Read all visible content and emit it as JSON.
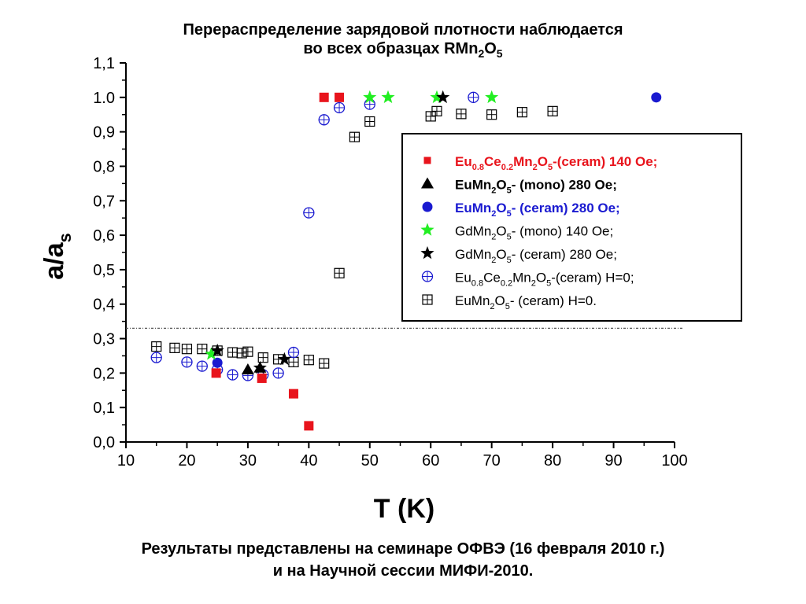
{
  "page": {
    "title_line1": "Перераспределение зарядовой плотности наблюдается",
    "title_line2_prefix": "во всех образцах RMn",
    "title_line2_sub1": "2",
    "title_line2_mid": "O",
    "title_line2_sub2": "5",
    "footer_line1": "Результаты представлены на семинаре ОФВЭ (16 февраля 2010 г.)",
    "footer_line2": "и на Научной сессии МИФИ-2010."
  },
  "chart_data": {
    "type": "scatter",
    "xlabel": "T (K)",
    "ylabel_main": "a/a",
    "ylabel_sub": "s",
    "xlim": [
      10,
      100
    ],
    "ylim": [
      0,
      1.1
    ],
    "x_ticks": [
      10,
      20,
      30,
      40,
      50,
      60,
      70,
      80,
      90,
      100
    ],
    "y_ticks": [
      {
        "v": 0.0,
        "label": "0,0"
      },
      {
        "v": 0.1,
        "label": "0,1"
      },
      {
        "v": 0.2,
        "label": "0,2"
      },
      {
        "v": 0.3,
        "label": "0,3"
      },
      {
        "v": 0.4,
        "label": "0,4"
      },
      {
        "v": 0.5,
        "label": "0,5"
      },
      {
        "v": 0.6,
        "label": "0,6"
      },
      {
        "v": 0.7,
        "label": "0,7"
      },
      {
        "v": 0.8,
        "label": "0,8"
      },
      {
        "v": 0.9,
        "label": "0,9"
      },
      {
        "v": 1.0,
        "label": "1.0"
      },
      {
        "v": 1.1,
        "label": "1,1"
      }
    ],
    "reference_line_y": 0.33,
    "legend_position": "right",
    "series": [
      {
        "label_parts": [
          [
            "Eu",
            ""
          ],
          [
            "0.8",
            "sub"
          ],
          [
            "Ce",
            ""
          ],
          [
            "0.2",
            "sub"
          ],
          [
            "Mn",
            ""
          ],
          [
            "2",
            "sub"
          ],
          [
            "O",
            ""
          ],
          [
            "5",
            "sub"
          ],
          [
            "-(ceram) 140 Oe;",
            ""
          ]
        ],
        "marker": "square",
        "color": "#e8141c",
        "text_color": "#e8141c",
        "bold": true,
        "points": [
          [
            24.8,
            0.2
          ],
          [
            32.3,
            0.185
          ],
          [
            37.5,
            0.14
          ],
          [
            40.0,
            0.047
          ],
          [
            42.5,
            1.0
          ],
          [
            45.0,
            1.0
          ]
        ]
      },
      {
        "label_parts": [
          [
            "EuMn",
            ""
          ],
          [
            "2",
            "sub"
          ],
          [
            "O",
            ""
          ],
          [
            "5",
            "sub"
          ],
          [
            "-          (mono)  280 Oe;",
            ""
          ]
        ],
        "marker": "triangle",
        "color": "#000000",
        "text_color": "#000000",
        "bold": true,
        "points": [
          [
            30.0,
            0.21
          ],
          [
            32.0,
            0.215
          ]
        ]
      },
      {
        "label_parts": [
          [
            "EuMn",
            ""
          ],
          [
            "2",
            "sub"
          ],
          [
            "O",
            ""
          ],
          [
            "5",
            "sub"
          ],
          [
            "-          (ceram) 280 Oe;",
            ""
          ]
        ],
        "marker": "circle",
        "color": "#1a1ad0",
        "text_color": "#1a1ad0",
        "bold": true,
        "points": [
          [
            25.0,
            0.23
          ],
          [
            97.0,
            1.0
          ]
        ]
      },
      {
        "label_parts": [
          [
            "GdMn",
            ""
          ],
          [
            "2",
            "sub"
          ],
          [
            "O",
            ""
          ],
          [
            "5",
            "sub"
          ],
          [
            "-        (mono)   140 Oe;",
            ""
          ]
        ],
        "marker": "star",
        "color": "#22ee22",
        "text_color": "#000000",
        "bold": false,
        "points": [
          [
            24.0,
            0.255
          ],
          [
            50.0,
            1.0
          ],
          [
            53.0,
            1.0
          ],
          [
            61.0,
            1.0
          ],
          [
            70.0,
            1.0
          ]
        ]
      },
      {
        "label_parts": [
          [
            "GdMn",
            ""
          ],
          [
            "2",
            "sub"
          ],
          [
            "O",
            ""
          ],
          [
            "5",
            "sub"
          ],
          [
            "-        (ceram)  280 Oe;",
            ""
          ]
        ],
        "marker": "star",
        "color": "#000000",
        "text_color": "#000000",
        "bold": false,
        "points": [
          [
            25.0,
            0.265
          ],
          [
            32.0,
            0.215
          ],
          [
            36.0,
            0.24
          ],
          [
            62.0,
            1.0
          ]
        ]
      },
      {
        "label_parts": [
          [
            "Eu",
            ""
          ],
          [
            "0.8",
            "sub"
          ],
          [
            "Ce",
            ""
          ],
          [
            "0.2",
            "sub"
          ],
          [
            "Mn",
            ""
          ],
          [
            "2",
            "sub"
          ],
          [
            "O",
            ""
          ],
          [
            "5",
            "sub"
          ],
          [
            "-(ceram)     H=0;",
            ""
          ]
        ],
        "marker": "circle-open",
        "color": "#1a1ad0",
        "text_color": "#000000",
        "bold": false,
        "points": [
          [
            15.0,
            0.245
          ],
          [
            20.0,
            0.232
          ],
          [
            22.5,
            0.22
          ],
          [
            25.0,
            0.21
          ],
          [
            27.5,
            0.195
          ],
          [
            30.0,
            0.193
          ],
          [
            32.5,
            0.195
          ],
          [
            35.0,
            0.2
          ],
          [
            37.5,
            0.26
          ],
          [
            40.0,
            0.665
          ],
          [
            42.5,
            0.935
          ],
          [
            45.0,
            0.97
          ],
          [
            50.0,
            0.98
          ],
          [
            67.0,
            1.0
          ]
        ]
      },
      {
        "label_parts": [
          [
            "EuMn",
            ""
          ],
          [
            "2",
            "sub"
          ],
          [
            "O",
            ""
          ],
          [
            "5",
            "sub"
          ],
          [
            "-           (ceram)  H=0.",
            ""
          ]
        ],
        "marker": "square-open",
        "color": "#000000",
        "text_color": "#000000",
        "bold": false,
        "points": [
          [
            15.0,
            0.277
          ],
          [
            18.0,
            0.273
          ],
          [
            20.0,
            0.27
          ],
          [
            22.5,
            0.27
          ],
          [
            25.0,
            0.265
          ],
          [
            27.5,
            0.26
          ],
          [
            29.0,
            0.258
          ],
          [
            30.0,
            0.262
          ],
          [
            32.5,
            0.245
          ],
          [
            35.0,
            0.24
          ],
          [
            37.5,
            0.232
          ],
          [
            40.0,
            0.238
          ],
          [
            42.5,
            0.228
          ],
          [
            45.0,
            0.49
          ],
          [
            47.5,
            0.885
          ],
          [
            50.0,
            0.93
          ],
          [
            60.0,
            0.945
          ],
          [
            61.0,
            0.96
          ],
          [
            65.0,
            0.952
          ],
          [
            70.0,
            0.95
          ],
          [
            75.0,
            0.957
          ],
          [
            80.0,
            0.96
          ]
        ]
      }
    ]
  }
}
